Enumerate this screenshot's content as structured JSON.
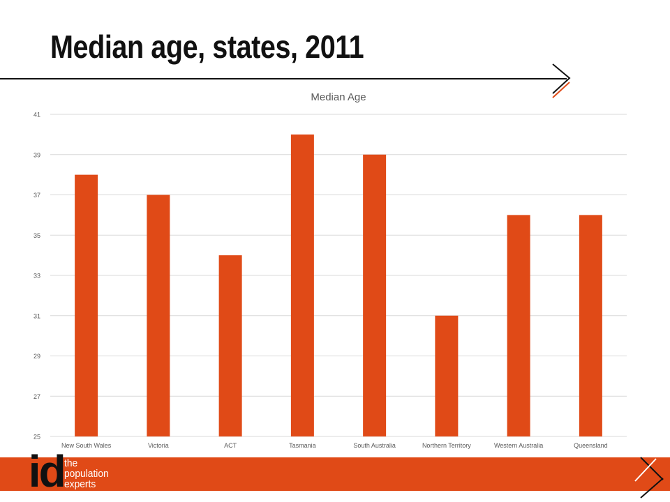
{
  "slide": {
    "title": "Median age, states, 2011"
  },
  "logo": {
    "mark_dot": ".",
    "mark_text": "id",
    "tagline": [
      "the",
      "population",
      "experts"
    ]
  },
  "colors": {
    "accent": "#e04a17",
    "text": "#111111",
    "grid": "#d9d9d9",
    "axis_text": "#595959"
  },
  "chart_data": {
    "type": "bar",
    "title": "Median Age",
    "categories": [
      "New South Wales",
      "Victoria",
      "ACT",
      "Tasmania",
      "South Australia",
      "Northern Territory",
      "Western Australia",
      "Queensland"
    ],
    "values": [
      38,
      37,
      34,
      40,
      39,
      31,
      36,
      36
    ],
    "ylim": [
      25,
      41
    ],
    "yticks": [
      25,
      27,
      29,
      31,
      33,
      35,
      37,
      39,
      41
    ],
    "grid": true,
    "legend": "none",
    "bar_color": "#e04a17"
  }
}
